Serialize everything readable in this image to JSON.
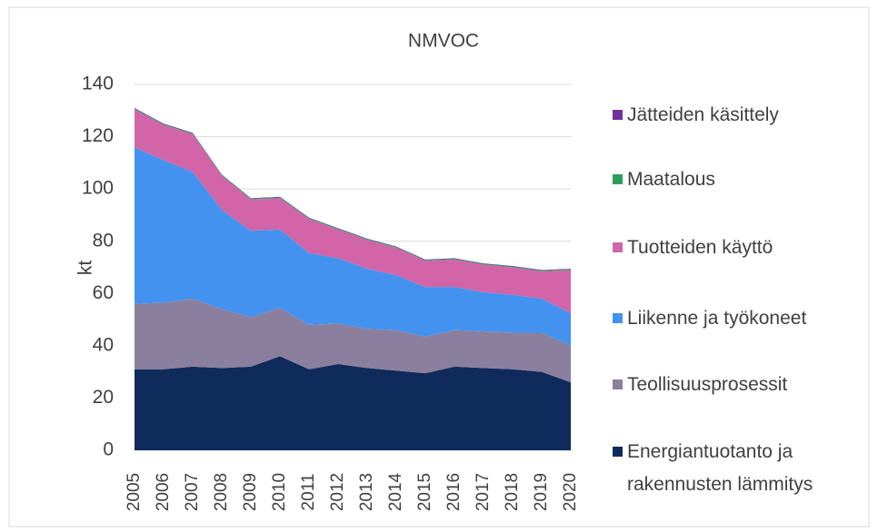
{
  "chart_data": {
    "type": "stacked_area",
    "title": "NMVOC",
    "y_label": "kt",
    "x": [
      2005,
      2006,
      2007,
      2008,
      2009,
      2010,
      2011,
      2012,
      2013,
      2014,
      2015,
      2016,
      2017,
      2018,
      2019,
      2020
    ],
    "xlim": [
      2005,
      2020
    ],
    "ylim": [
      0,
      140
    ],
    "yticks": [
      0,
      20,
      40,
      60,
      80,
      100,
      120,
      140
    ],
    "series": [
      {
        "name": "Energiantuotanto ja rakennusten lämmitys",
        "color": "#0e2b5c",
        "values": [
          31,
          31,
          32,
          31.5,
          32,
          36,
          31,
          33,
          31.5,
          30.5,
          29.5,
          32,
          31.5,
          31,
          30,
          26
        ]
      },
      {
        "name": "Teollisuusprosessit",
        "color": "#8b7f9e",
        "values": [
          25,
          25.5,
          26,
          22.5,
          19,
          18.5,
          17,
          15.5,
          15,
          15.5,
          14,
          14,
          14,
          14,
          15,
          14
        ]
      },
      {
        "name": "Liikenne ja työkoneet",
        "color": "#4492f0",
        "values": [
          60,
          54.5,
          48.5,
          38,
          33,
          30,
          27.5,
          25,
          23,
          21,
          19,
          16.5,
          15,
          14.5,
          13,
          12.5
        ]
      },
      {
        "name": "Tuotteiden käyttö",
        "color": "#d265a8",
        "values": [
          14.5,
          13.5,
          14.5,
          13,
          12,
          12,
          13,
          11,
          11,
          10.5,
          10,
          10.5,
          10.5,
          10.5,
          10.5,
          16.5
        ]
      },
      {
        "name": "Maatalous",
        "color": "#2ca05a",
        "values": [
          0.3,
          0.3,
          0.3,
          0.3,
          0.3,
          0.3,
          0.3,
          0.3,
          0.3,
          0.3,
          0.3,
          0.3,
          0.3,
          0.3,
          0.3,
          0.3
        ]
      },
      {
        "name": "Jätteiden käsittely",
        "color": "#7030a0",
        "values": [
          0.2,
          0.2,
          0.2,
          0.2,
          0.2,
          0.2,
          0.2,
          0.2,
          0.2,
          0.2,
          0.2,
          0.2,
          0.2,
          0.2,
          0.2,
          0.2
        ]
      }
    ],
    "grid": true,
    "legend": "right"
  }
}
